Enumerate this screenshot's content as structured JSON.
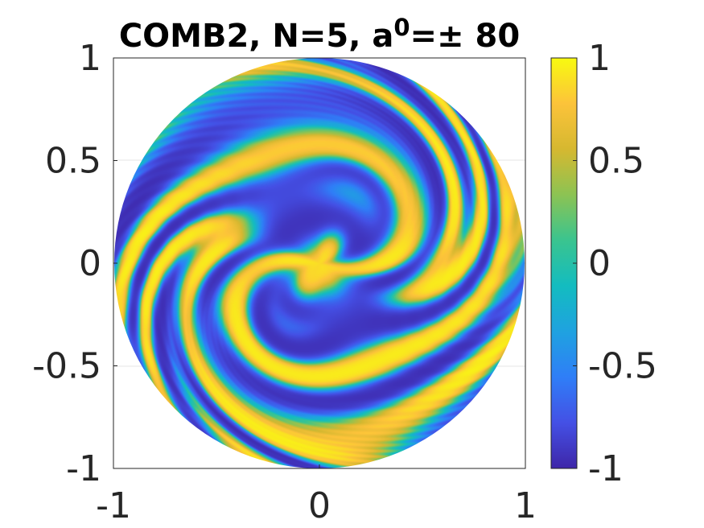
{
  "chart_data": {
    "type": "heatmap",
    "title": {
      "prefix": "COMB2, N=5, a",
      "superscript": "0",
      "suffix": "=± 80"
    },
    "xlabel": "",
    "ylabel": "",
    "xlim": [
      -1,
      1
    ],
    "ylim": [
      -1,
      1
    ],
    "xticks": [
      {
        "value": -1,
        "label": "-1"
      },
      {
        "value": 0,
        "label": "0"
      },
      {
        "value": 1,
        "label": "1"
      }
    ],
    "yticks": [
      {
        "value": 1,
        "label": "1"
      },
      {
        "value": 0.5,
        "label": "0.5"
      },
      {
        "value": 0,
        "label": "0"
      },
      {
        "value": -0.5,
        "label": "-0.5"
      },
      {
        "value": -1,
        "label": "-1"
      }
    ],
    "domain": "unit disk",
    "color_range": [
      -1,
      1
    ],
    "colormap": "parula",
    "colormap_stops": [
      "#3e26a8",
      "#4450e5",
      "#2f7ef7",
      "#1fa2e0",
      "#13bcc0",
      "#3ac48f",
      "#8cc353",
      "#d6b830",
      "#fcc33a",
      "#f8fa10"
    ],
    "colorbar": {
      "ticks": [
        {
          "value": 1,
          "label": "1"
        },
        {
          "value": 0.5,
          "label": "0.5"
        },
        {
          "value": 0,
          "label": "0"
        },
        {
          "value": -0.5,
          "label": "-0.5"
        },
        {
          "value": -1,
          "label": "-1"
        }
      ]
    }
  }
}
